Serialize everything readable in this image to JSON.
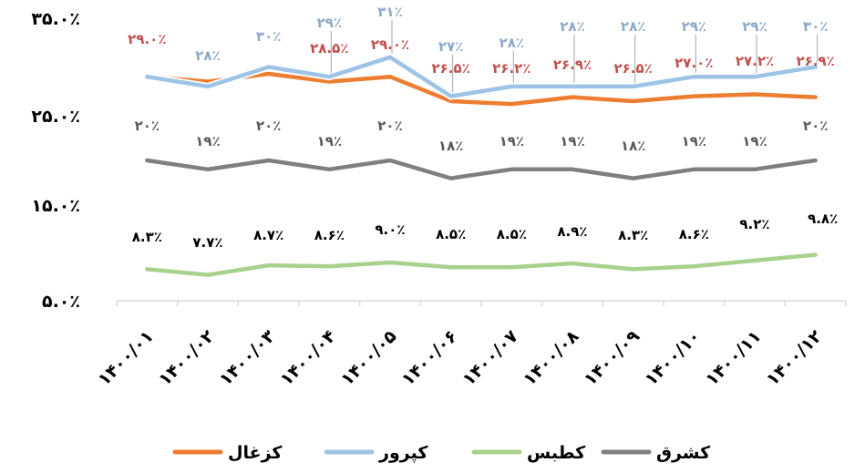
{
  "chart_data": {
    "type": "line",
    "categories": [
      "۱۴۰۰/۰۱",
      "۱۴۰۰/۰۲",
      "۱۴۰۰/۰۳",
      "۱۴۰۰/۰۴",
      "۱۴۰۰/۰۵",
      "۱۴۰۰/۰۶",
      "۱۴۰۰/۰۷",
      "۱۴۰۰/۰۸",
      "۱۴۰۰/۰۹",
      "۱۴۰۰/۱۰",
      "۱۴۰۰/۱۱",
      "۱۴۰۰/۱۲"
    ],
    "ylim": [
      5,
      35
    ],
    "yticks": [
      5,
      15,
      25,
      35
    ],
    "ytick_labels": [
      "۵.۰٪",
      "۱۵.۰٪",
      "۲۵.۰٪",
      "۳۵.۰٪"
    ],
    "grid": false,
    "legend_position": "bottom",
    "series": [
      {
        "name": "كزغال",
        "color": "#ED7D31",
        "label_color": "#C0504D",
        "values": [
          29.0,
          28.5,
          29.3,
          28.5,
          29.0,
          26.5,
          26.2,
          26.9,
          26.5,
          27.0,
          27.2,
          26.9
        ],
        "labels": [
          "۲۹.۰٪",
          "",
          "",
          "۲۸.۵٪",
          "۲۹.۰٪",
          "۲۶.۵٪",
          "۲۶.۲٪",
          "۲۶.۹٪",
          "۲۶.۵٪",
          "۲۷.۰٪",
          "۲۷.۲٪",
          "۲۶.۹٪"
        ]
      },
      {
        "name": "کپرور",
        "color": "#9DC3E6",
        "label_color": "#8EA9C8",
        "values": [
          29.0,
          28.0,
          30.0,
          29.0,
          31.0,
          27.0,
          28.0,
          28.0,
          28.0,
          29.0,
          29.0,
          30.0
        ],
        "labels": [
          "",
          "۲۸٪",
          "۳۰٪",
          "۲۹٪",
          "۳۱٪",
          "۲۷٪",
          "۲۸٪",
          "۲۸٪",
          "۲۸٪",
          "۲۹٪",
          "۲۹٪",
          "۳۰٪"
        ]
      },
      {
        "name": "کطبس",
        "color": "#A9D18E",
        "label_color": "#000000",
        "values": [
          8.3,
          7.7,
          8.7,
          8.6,
          9.0,
          8.5,
          8.5,
          8.9,
          8.3,
          8.6,
          9.2,
          9.8
        ],
        "labels": [
          "۸.۳٪",
          "۷.۷٪",
          "۸.۷٪",
          "۸.۶٪",
          "۹.۰٪",
          "۸.۵٪",
          "۸.۵٪",
          "۸.۹٪",
          "۸.۳٪",
          "۸.۶٪",
          "۹.۲٪",
          "۹.۸٪"
        ]
      },
      {
        "name": "کشرق",
        "color": "#7F7F7F",
        "label_color": "#595959",
        "values": [
          20,
          19,
          20,
          19,
          20,
          18,
          19,
          19,
          18,
          19,
          19,
          20
        ],
        "labels": [
          "۲۰٪",
          "۱۹٪",
          "۲۰٪",
          "۱۹٪",
          "۲۰٪",
          "۱۸٪",
          "۱۹٪",
          "۱۹٪",
          "۱۸٪",
          "۱۹٪",
          "۱۹٪",
          "۲۰٪"
        ]
      }
    ]
  }
}
